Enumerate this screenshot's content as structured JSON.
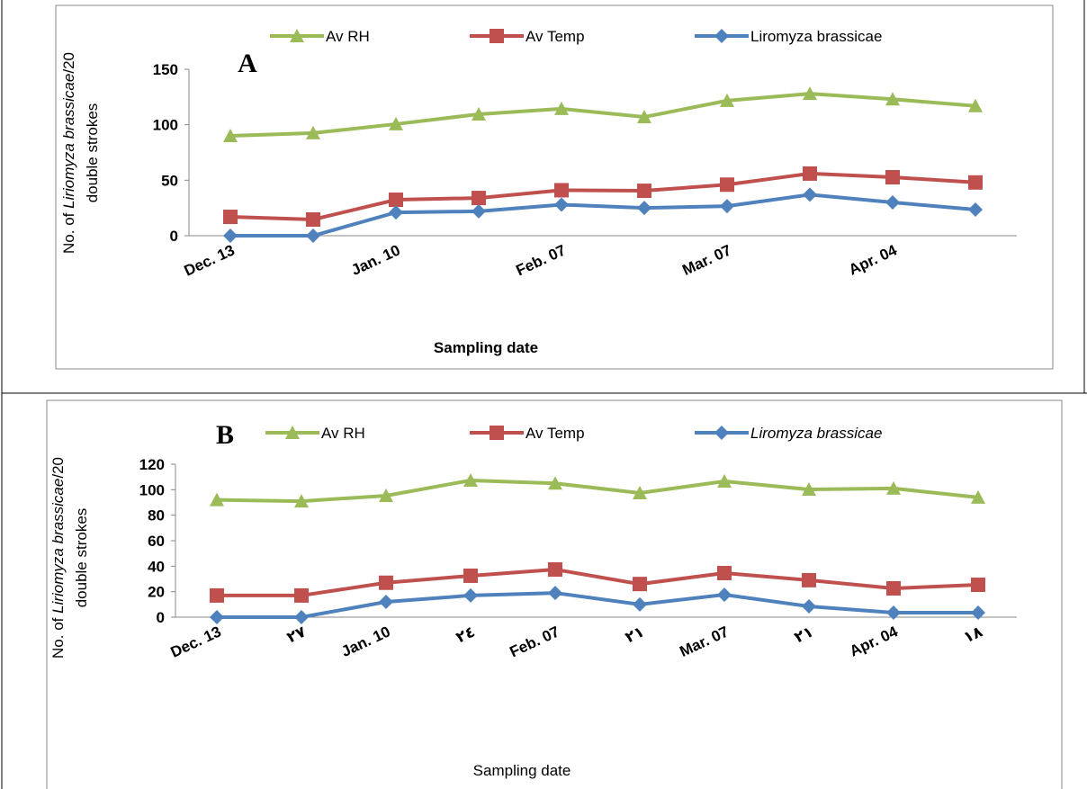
{
  "chart_data": [
    {
      "type": "line",
      "title": "A",
      "y_label": [
        "No. of ",
        "Liriomyza brassicae",
        "/20",
        "double strokes"
      ],
      "x_label": "Sampling date",
      "categories": [
        "Dec. 13",
        null,
        "Jan. 10",
        null,
        "Feb. 07",
        null,
        "Mar. 07",
        null,
        "Apr. 04",
        null
      ],
      "ylim": [
        0,
        150
      ],
      "yticks": [
        0,
        50,
        100,
        150
      ],
      "series": [
        {
          "name": "Av RH",
          "color": "#9bbb59",
          "values": [
            90,
            92.5,
            100.6,
            109.5,
            114.4,
            107,
            121.7,
            128,
            123,
            117
          ]
        },
        {
          "name": "Av Temp",
          "color": "#c0504d",
          "values": [
            17,
            14.6,
            32.4,
            34,
            41,
            40.5,
            46,
            56,
            52.7,
            48
          ]
        },
        {
          "name": "Liromyza brassicae",
          "color": "#4f81bd",
          "values": [
            0,
            0,
            21,
            22,
            28,
            25,
            26.7,
            37,
            30,
            23.5
          ]
        }
      ]
    },
    {
      "type": "line",
      "title": "B",
      "y_label": [
        "No. of ",
        "Liriomyza brassicae",
        "/20",
        "double strokes"
      ],
      "x_label": "Sampling date",
      "categories": [
        "Dec. 13",
        "٢٧",
        "Jan. 10",
        "٢٤",
        "Feb. 07",
        "٢١",
        "Mar. 07",
        "٢١",
        "Apr. 04",
        "١٨"
      ],
      "ylim": [
        0,
        120
      ],
      "yticks": [
        0,
        20,
        40,
        60,
        80,
        100,
        120
      ],
      "series": [
        {
          "name": "Av RH",
          "color": "#9bbb59",
          "values": [
            92,
            91,
            95.3,
            107.3,
            105,
            97.4,
            106.6,
            100.2,
            101,
            94
          ]
        },
        {
          "name": "Av Temp",
          "color": "#c0504d",
          "values": [
            17,
            17,
            27,
            32.5,
            37.4,
            26,
            34.6,
            29,
            22.6,
            25.4
          ]
        },
        {
          "name": "Liromyza brassicae",
          "color": "#4f81bd",
          "values": [
            0,
            0,
            12,
            17,
            19,
            10,
            17.6,
            8.5,
            3.5,
            3.5
          ]
        }
      ]
    }
  ]
}
